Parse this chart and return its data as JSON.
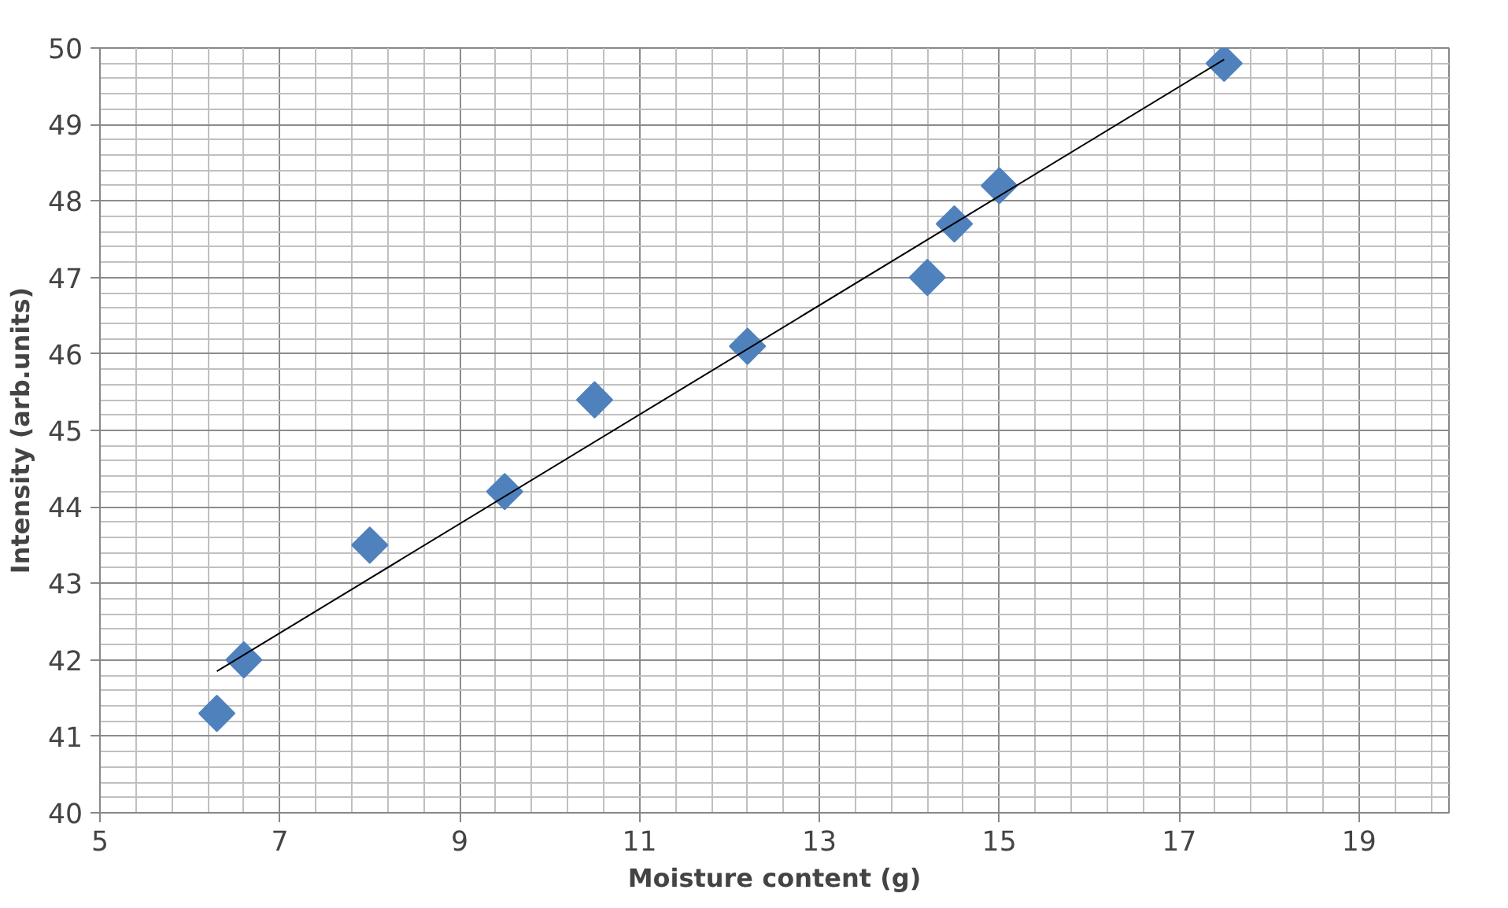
{
  "chart_data": {
    "type": "scatter",
    "xlabel": "Moisture content (g)",
    "ylabel": "Intensity (arb.units)",
    "xlim": [
      5,
      20
    ],
    "xticks": [
      5,
      7,
      9,
      11,
      13,
      15,
      17,
      19
    ],
    "ylim": [
      40,
      50
    ],
    "yticks": [
      40,
      41,
      42,
      43,
      44,
      45,
      46,
      47,
      48,
      49,
      50
    ],
    "grid": true,
    "series": [
      {
        "color": "#4f81bd",
        "marker": "diamond",
        "x": [
          6.3,
          6.6,
          8.0,
          9.5,
          10.5,
          12.2,
          14.2,
          14.5,
          15.0,
          17.5
        ],
        "values": [
          41.3,
          42.0,
          43.5,
          44.2,
          45.4,
          46.1,
          47.0,
          47.7,
          48.2,
          49.8
        ]
      },
      {
        "type": "line",
        "color": "#000000",
        "line_style": "solid",
        "marker": "none",
        "x": [
          6.3,
          17.5
        ],
        "values": [
          41.85,
          49.85
        ]
      }
    ]
  }
}
